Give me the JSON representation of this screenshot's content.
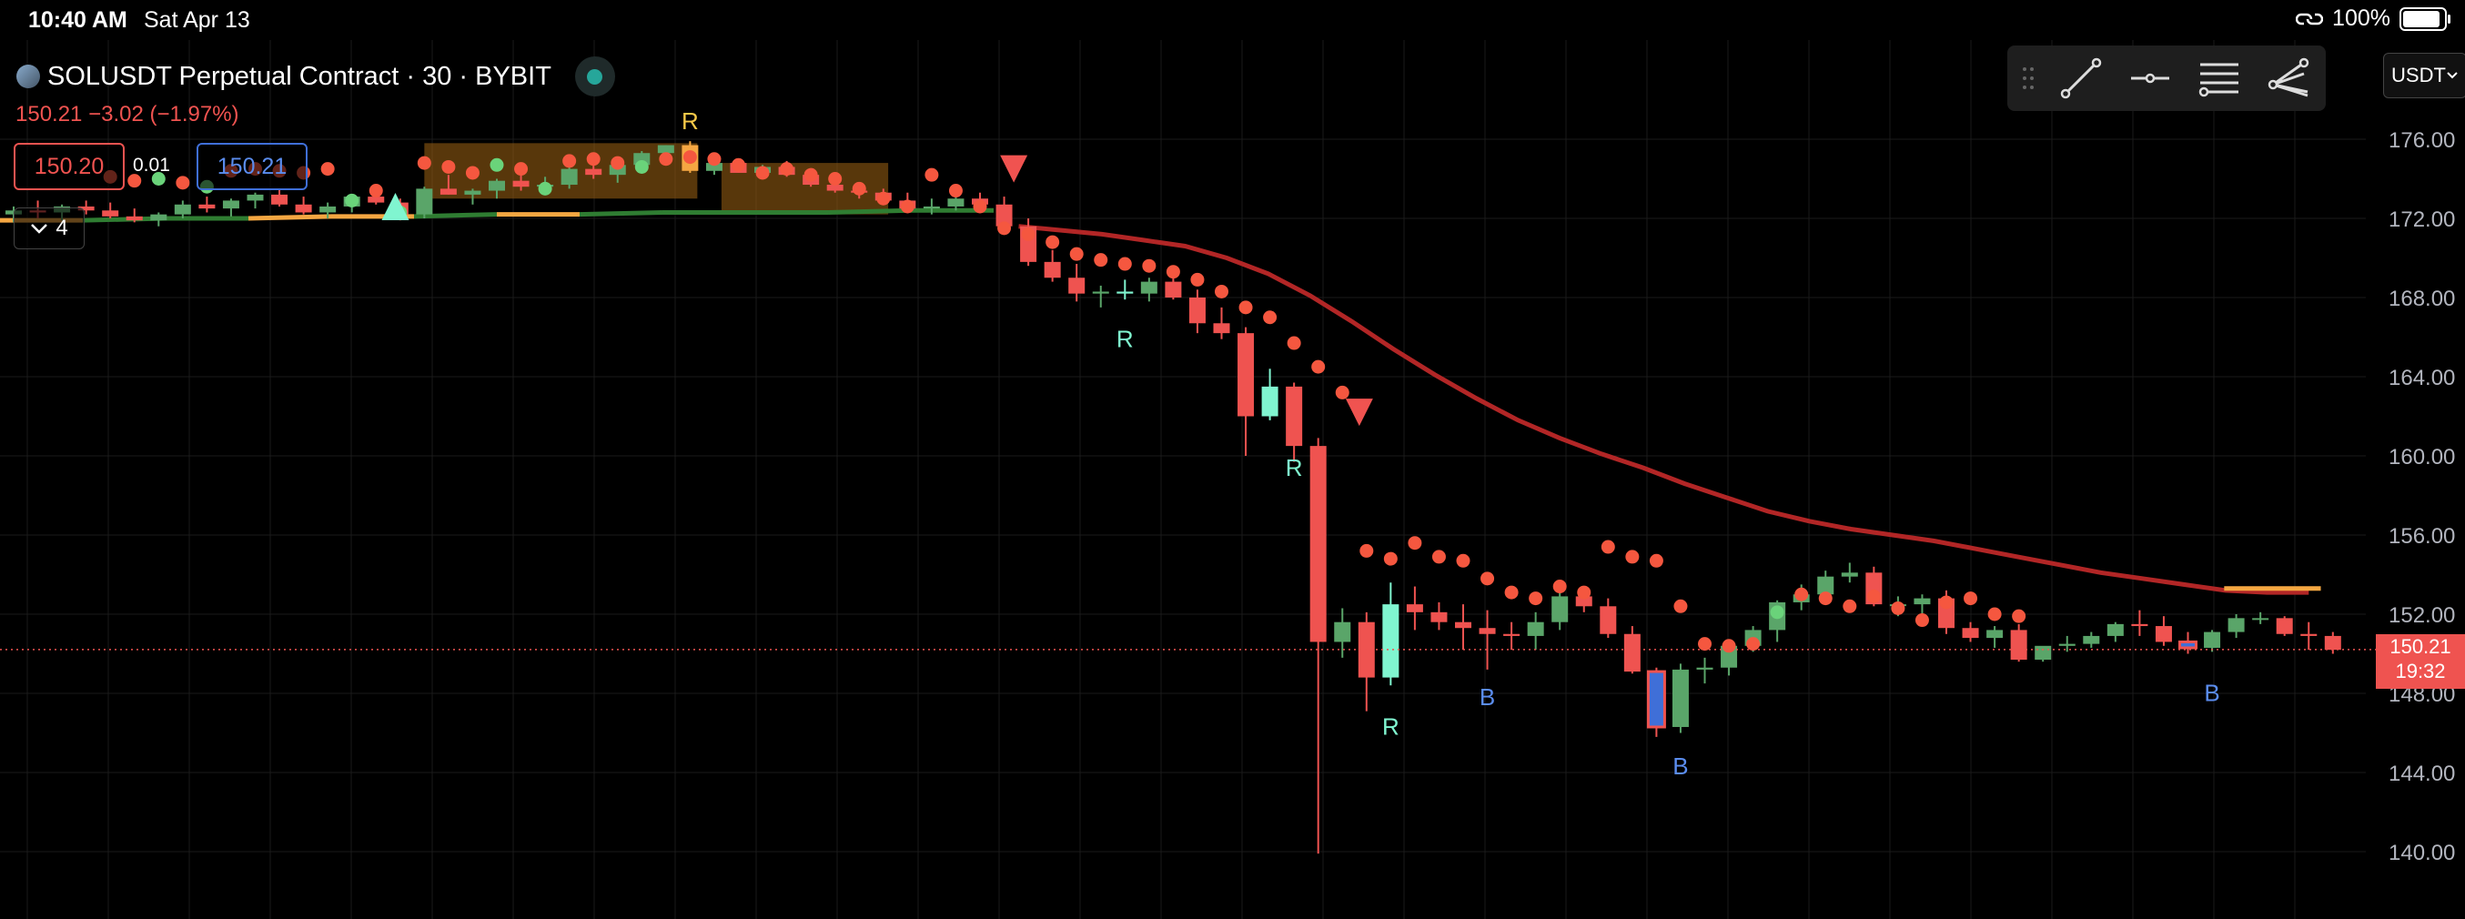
{
  "status_bar": {
    "time": "10:40 AM",
    "date": "Sat Apr 13",
    "battery": "100%",
    "battery_level": 1.0
  },
  "header": {
    "symbol_title": "SOLUSDT Perpetual Contract · 30 · BYBIT",
    "change_line": "150.21 −3.02 (−1.97%)",
    "bid": "150.20",
    "spread": "0.01",
    "ask": "150.21",
    "indicators_count": "4"
  },
  "toolbar": {
    "tools": [
      "trend-line-icon",
      "horizontal-ray-icon",
      "parallel-channel-icon",
      "pitchfork-icon"
    ],
    "currency": "USDT"
  },
  "price_label": {
    "price": "150.21",
    "countdown": "19:32"
  },
  "colors": {
    "up": "#5aa569",
    "down": "#ef5350",
    "bright_up": "#80f5d0",
    "ma": "#b22626",
    "signal_dot_up": "#6ad37a"
  },
  "chart_data": {
    "type": "candlestick",
    "y_ticks": [
      "176.00",
      "172.00",
      "168.00",
      "164.00",
      "160.00",
      "156.00",
      "152.00",
      "148.00",
      "144.00",
      "140.00"
    ],
    "ylim": [
      138.5,
      178.4
    ],
    "current_price": 150.21,
    "candles": [
      [
        172.2,
        172.6,
        171.8,
        172.4
      ],
      [
        172.4,
        172.9,
        172.0,
        172.3
      ],
      [
        172.3,
        172.7,
        171.9,
        172.6
      ],
      [
        172.6,
        172.9,
        172.2,
        172.4
      ],
      [
        172.4,
        172.8,
        172.0,
        172.1
      ],
      [
        172.1,
        172.5,
        171.8,
        171.9
      ],
      [
        171.9,
        172.3,
        171.6,
        172.2
      ],
      [
        172.2,
        172.9,
        172.0,
        172.7
      ],
      [
        172.7,
        173.1,
        172.3,
        172.5
      ],
      [
        172.5,
        173.0,
        172.1,
        172.9
      ],
      [
        172.9,
        173.3,
        172.5,
        173.2
      ],
      [
        173.2,
        173.5,
        172.6,
        172.7
      ],
      [
        172.7,
        173.1,
        172.2,
        172.3
      ],
      [
        172.3,
        172.8,
        172.0,
        172.6
      ],
      [
        172.6,
        173.2,
        172.3,
        173.1
      ],
      [
        173.1,
        173.5,
        172.7,
        172.8
      ],
      [
        172.8,
        173.0,
        171.9,
        172.2
      ],
      [
        172.2,
        173.6,
        172.0,
        173.5
      ],
      [
        173.5,
        174.2,
        173.2,
        173.2
      ],
      [
        173.2,
        173.5,
        172.7,
        173.4
      ],
      [
        173.4,
        174.0,
        173.0,
        173.9
      ],
      [
        173.9,
        174.3,
        173.4,
        173.6
      ],
      [
        173.6,
        174.1,
        173.2,
        173.7
      ],
      [
        173.7,
        174.6,
        173.5,
        174.5
      ],
      [
        174.5,
        175.0,
        174.0,
        174.2
      ],
      [
        174.2,
        174.8,
        173.8,
        174.7
      ],
      [
        174.7,
        175.4,
        174.3,
        175.3
      ],
      [
        175.3,
        175.7,
        174.9,
        175.7
      ],
      [
        175.7,
        175.9,
        174.3,
        174.4
      ],
      [
        174.4,
        174.9,
        174.2,
        174.8
      ],
      [
        174.8,
        175.0,
        174.3,
        174.3
      ],
      [
        174.3,
        174.7,
        174.0,
        174.6
      ],
      [
        174.6,
        174.9,
        174.1,
        174.2
      ],
      [
        174.2,
        174.5,
        173.6,
        173.7
      ],
      [
        173.7,
        174.0,
        173.3,
        173.4
      ],
      [
        173.4,
        173.7,
        173.0,
        173.3
      ],
      [
        173.3,
        173.5,
        172.8,
        172.9
      ],
      [
        172.9,
        173.3,
        172.4,
        172.5
      ],
      [
        172.5,
        173.0,
        172.2,
        172.6
      ],
      [
        172.6,
        173.2,
        172.4,
        173.0
      ],
      [
        173.0,
        173.3,
        172.6,
        172.7
      ],
      [
        172.7,
        173.1,
        171.5,
        171.6
      ],
      [
        171.6,
        172.0,
        169.6,
        169.8
      ],
      [
        169.8,
        170.4,
        168.8,
        169.0
      ],
      [
        169.0,
        169.7,
        167.8,
        168.2
      ],
      [
        168.2,
        168.6,
        167.5,
        168.3
      ],
      [
        168.3,
        168.9,
        167.9,
        168.2
      ],
      [
        168.2,
        169.0,
        167.8,
        168.8
      ],
      [
        168.8,
        169.1,
        167.9,
        168.0
      ],
      [
        168.0,
        168.4,
        166.2,
        166.7
      ],
      [
        166.7,
        167.5,
        165.9,
        166.2
      ],
      [
        166.2,
        166.5,
        160.0,
        162.0
      ],
      [
        162.0,
        164.4,
        161.8,
        163.5
      ],
      [
        163.5,
        163.7,
        159.7,
        160.5
      ],
      [
        160.5,
        160.9,
        139.9,
        150.6
      ],
      [
        150.6,
        152.3,
        149.8,
        151.6
      ],
      [
        151.6,
        152.1,
        147.1,
        148.8
      ],
      [
        148.8,
        153.6,
        148.4,
        152.5
      ],
      [
        152.5,
        153.4,
        151.2,
        152.1
      ],
      [
        152.1,
        152.6,
        151.2,
        151.6
      ],
      [
        151.6,
        152.5,
        150.2,
        151.3
      ],
      [
        151.3,
        152.2,
        149.2,
        151.0
      ],
      [
        151.0,
        151.6,
        150.2,
        150.9
      ],
      [
        150.9,
        152.1,
        150.2,
        151.6
      ],
      [
        151.6,
        153.5,
        151.2,
        152.9
      ],
      [
        152.9,
        153.3,
        152.1,
        152.4
      ],
      [
        152.4,
        152.8,
        150.8,
        151.0
      ],
      [
        151.0,
        151.4,
        149.0,
        149.1
      ],
      [
        149.1,
        149.3,
        145.8,
        146.3
      ],
      [
        146.3,
        149.5,
        146.0,
        149.2
      ],
      [
        149.2,
        149.8,
        148.5,
        149.3
      ],
      [
        149.3,
        150.6,
        148.9,
        150.4
      ],
      [
        150.4,
        151.4,
        150.1,
        151.2
      ],
      [
        151.2,
        152.7,
        150.6,
        152.6
      ],
      [
        152.6,
        153.5,
        152.2,
        153.0
      ],
      [
        153.0,
        154.2,
        152.5,
        153.9
      ],
      [
        153.9,
        154.6,
        153.6,
        154.1
      ],
      [
        154.1,
        154.4,
        152.4,
        152.5
      ],
      [
        152.5,
        152.9,
        151.9,
        152.5
      ],
      [
        152.5,
        153.0,
        152.0,
        152.8
      ],
      [
        152.8,
        153.2,
        151.0,
        151.3
      ],
      [
        151.3,
        151.6,
        150.6,
        150.8
      ],
      [
        150.8,
        151.4,
        150.3,
        151.2
      ],
      [
        151.2,
        151.5,
        149.6,
        149.7
      ],
      [
        149.7,
        150.3,
        149.6,
        150.4
      ],
      [
        150.4,
        150.9,
        150.1,
        150.5
      ],
      [
        150.5,
        151.1,
        150.3,
        150.9
      ],
      [
        150.9,
        151.6,
        150.6,
        151.5
      ],
      [
        151.5,
        152.2,
        150.9,
        151.4
      ],
      [
        151.4,
        151.9,
        150.4,
        150.6
      ],
      [
        150.6,
        151.1,
        150.0,
        150.3
      ],
      [
        150.3,
        151.2,
        150.1,
        151.1
      ],
      [
        151.1,
        152.0,
        150.8,
        151.8
      ],
      [
        151.8,
        152.1,
        151.5,
        151.8
      ],
      [
        151.8,
        151.9,
        150.9,
        151.0
      ],
      [
        151.0,
        151.6,
        150.2,
        150.9
      ],
      [
        150.9,
        151.1,
        150.0,
        150.2
      ]
    ],
    "signal_dots": [
      [
        174.1,
        0
      ],
      [
        173.9,
        0
      ],
      [
        174.0,
        1
      ],
      [
        173.8,
        0
      ],
      [
        173.6,
        1
      ],
      [
        174.4,
        0
      ],
      [
        174.5,
        0
      ],
      [
        174.4,
        0
      ],
      [
        174.3,
        0
      ],
      [
        174.5,
        0
      ],
      [
        172.9,
        1
      ],
      [
        173.4,
        0
      ],
      [
        172.3,
        1
      ],
      [
        174.8,
        0
      ],
      [
        174.6,
        0
      ],
      [
        174.3,
        0
      ],
      [
        174.7,
        1
      ],
      [
        174.5,
        0
      ],
      [
        173.5,
        1
      ],
      [
        174.9,
        0
      ],
      [
        175.0,
        0
      ],
      [
        174.8,
        0
      ],
      [
        174.6,
        1
      ],
      [
        175.0,
        0
      ],
      [
        175.1,
        0
      ],
      [
        175.0,
        0
      ],
      [
        174.7,
        0
      ],
      [
        174.3,
        0
      ],
      [
        174.5,
        0
      ],
      [
        174.2,
        0
      ],
      [
        174.0,
        0
      ],
      [
        173.5,
        0
      ],
      [
        173.0,
        0
      ],
      [
        172.6,
        0
      ],
      [
        174.2,
        0
      ],
      [
        173.4,
        0
      ],
      [
        172.6,
        0
      ],
      [
        171.5,
        0
      ],
      [
        171.2,
        0
      ],
      [
        170.8,
        0
      ],
      [
        170.2,
        0
      ],
      [
        169.9,
        0
      ],
      [
        169.7,
        0
      ],
      [
        169.6,
        0
      ],
      [
        169.3,
        0
      ],
      [
        168.9,
        0
      ],
      [
        168.3,
        0
      ],
      [
        167.5,
        0
      ],
      [
        167.0,
        0
      ],
      [
        165.7,
        0
      ],
      [
        164.5,
        0
      ],
      [
        163.2,
        0
      ],
      [
        155.2,
        0
      ],
      [
        154.8,
        0
      ],
      [
        155.6,
        0
      ],
      [
        154.9,
        0
      ],
      [
        154.7,
        0
      ],
      [
        153.8,
        0
      ],
      [
        153.1,
        0
      ],
      [
        152.8,
        0
      ],
      [
        153.4,
        0
      ],
      [
        153.1,
        0
      ],
      [
        155.4,
        0
      ],
      [
        154.9,
        0
      ],
      [
        154.7,
        0
      ],
      [
        152.4,
        0
      ],
      [
        150.5,
        0
      ],
      [
        150.4,
        0
      ],
      [
        150.5,
        0
      ],
      [
        152.1,
        1
      ],
      [
        153.0,
        0
      ],
      [
        152.8,
        0
      ],
      [
        152.4,
        0
      ],
      [
        152.9,
        0
      ],
      [
        152.3,
        0
      ],
      [
        151.7,
        0
      ],
      [
        152.6,
        0
      ],
      [
        152.8,
        0
      ],
      [
        152.0,
        0
      ],
      [
        151.9,
        0
      ]
    ],
    "ma_line": [
      171.6,
      171.4,
      171.2,
      170.9,
      170.6,
      170.0,
      169.2,
      168.1,
      166.8,
      165.4,
      164.1,
      162.9,
      161.8,
      160.9,
      160.1,
      159.4,
      158.6,
      157.9,
      157.2,
      156.7,
      156.3,
      156.0,
      155.7,
      155.3,
      154.9,
      154.5,
      154.1,
      153.8,
      153.5,
      153.2,
      153.1,
      153.1
    ],
    "trend_line": [
      171.9,
      171.9,
      172.0,
      172.0,
      172.1,
      172.1,
      172.2,
      172.2,
      172.3,
      172.3,
      172.3,
      172.4,
      172.4
    ],
    "letter_markers": [
      {
        "label": "R",
        "candle": 46,
        "price": 165.5,
        "color": "#80f5d0"
      },
      {
        "label": "R",
        "candle": 53,
        "price": 159.0,
        "color": "#80f5d0"
      },
      {
        "label": "R",
        "candle": 57,
        "price": 145.9,
        "color": "#80f5d0"
      },
      {
        "label": "B",
        "candle": 61,
        "price": 147.4,
        "color": "#5b8def"
      },
      {
        "label": "B",
        "candle": 69,
        "price": 143.9,
        "color": "#5b8def"
      },
      {
        "label": "B",
        "candle": 91,
        "price": 147.6,
        "color": "#5b8def"
      },
      {
        "label": "R",
        "candle": 28,
        "price": 176.5,
        "color": "#f7c948"
      }
    ],
    "blue_candles": [
      68,
      90
    ],
    "bright_up_candles": [
      46,
      52,
      57
    ]
  }
}
